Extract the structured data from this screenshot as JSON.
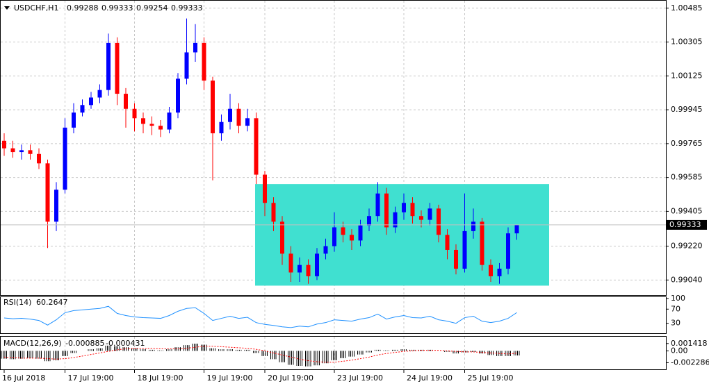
{
  "chart_data": {
    "type": "candlestick",
    "symbol": "USDCHF,H1",
    "up_color": "#0000ff",
    "down_color": "#ff0000",
    "categories": [
      "16 Jul 2018",
      null,
      null,
      null,
      null,
      null,
      null,
      "17 Jul 19:00",
      null,
      null,
      null,
      null,
      null,
      null,
      null,
      "18 Jul 19:00",
      null,
      null,
      null,
      null,
      null,
      null,
      null,
      "19 Jul 19:00",
      null,
      null,
      null,
      null,
      null,
      null,
      "20 Jul 19:00",
      null,
      null,
      null,
      null,
      null,
      null,
      null,
      "23 Jul 19:00",
      null,
      null,
      null,
      null,
      null,
      null,
      null,
      "24 Jul 19:00",
      null,
      null,
      null,
      null,
      null,
      null,
      "25 Jul 19:00",
      null,
      null,
      null,
      null,
      null,
      null
    ],
    "open": [
      0.9978,
      0.9974,
      0.9972,
      0.9973,
      0.9971,
      0.9966,
      0.9935,
      0.9952,
      0.9985,
      0.9993,
      0.9997,
      1.0001,
      1.0005,
      1.003,
      1.0003,
      0.9995,
      0.999,
      0.9987,
      0.9986,
      0.9984,
      0.9993,
      1.0011,
      1.0025,
      1.003,
      1.001,
      0.9982,
      0.9988,
      0.9995,
      0.9986,
      0.999,
      0.996,
      0.9945,
      0.9935,
      0.9918,
      0.9908,
      0.9912,
      0.9906,
      0.9918,
      0.9922,
      0.9932,
      0.9928,
      0.9925,
      0.9933,
      0.9938,
      0.995,
      0.9932,
      0.994,
      0.9945,
      0.9938,
      0.9936,
      0.9942,
      0.9928,
      0.992,
      0.991,
      0.993,
      0.9935,
      0.9912,
      0.9906,
      0.991,
      0.99288
    ],
    "high": [
      0.9982,
      0.9978,
      0.9976,
      0.9976,
      0.9974,
      0.9968,
      0.9956,
      0.999,
      0.9998,
      1.0,
      1.0004,
      1.0008,
      1.0035,
      1.0033,
      1.0006,
      0.9998,
      0.9993,
      0.9991,
      0.9989,
      0.9996,
      1.0014,
      1.0043,
      1.004,
      1.0033,
      1.0012,
      0.9992,
      1.0003,
      0.9998,
      0.9995,
      0.9993,
      0.9962,
      0.9948,
      0.9938,
      0.9922,
      0.9916,
      0.9915,
      0.9921,
      0.9926,
      0.994,
      0.9935,
      0.9931,
      0.9936,
      0.9942,
      0.9956,
      0.9953,
      0.9943,
      0.995,
      0.9948,
      0.9941,
      0.9945,
      0.9944,
      0.9931,
      0.9923,
      0.995,
      0.9942,
      0.9937,
      0.9915,
      0.9913,
      0.9932,
      0.99333
    ],
    "low": [
      0.997,
      0.9969,
      0.9968,
      0.9968,
      0.9963,
      0.9921,
      0.993,
      0.995,
      0.9982,
      0.9991,
      0.9995,
      0.9998,
      1.0002,
      0.9997,
      0.9985,
      0.9983,
      0.9982,
      0.9981,
      0.998,
      0.9982,
      0.999,
      1.0008,
      1.002,
      1.0005,
      0.9957,
      0.9978,
      0.9984,
      0.9982,
      0.9983,
      0.9955,
      0.9938,
      0.993,
      0.9912,
      0.9903,
      0.9903,
      0.9902,
      0.9904,
      0.9915,
      0.9919,
      0.9924,
      0.992,
      0.9922,
      0.993,
      0.9935,
      0.9928,
      0.9929,
      0.9936,
      0.9934,
      0.9932,
      0.9933,
      0.9924,
      0.9915,
      0.9907,
      0.9908,
      0.9926,
      0.9909,
      0.9903,
      0.9902,
      0.9907,
      0.99254
    ],
    "close": [
      0.9974,
      0.9972,
      0.9973,
      0.9971,
      0.9966,
      0.9935,
      0.9952,
      0.9985,
      0.9993,
      0.9997,
      1.0001,
      1.0005,
      1.003,
      1.0003,
      0.9995,
      0.999,
      0.9987,
      0.9986,
      0.9984,
      0.9993,
      1.0011,
      1.0025,
      1.003,
      1.001,
      0.9982,
      0.9988,
      0.9995,
      0.9986,
      0.999,
      0.996,
      0.9945,
      0.9935,
      0.9918,
      0.9908,
      0.9912,
      0.9906,
      0.9918,
      0.9922,
      0.9932,
      0.9928,
      0.9925,
      0.9933,
      0.9938,
      0.995,
      0.9932,
      0.994,
      0.9945,
      0.9938,
      0.9936,
      0.9942,
      0.9928,
      0.992,
      0.991,
      0.993,
      0.9935,
      0.9912,
      0.9906,
      0.991,
      0.99288,
      0.99333
    ],
    "ylim": [
      0.9896,
      1.0051
    ],
    "yticks": [
      1.00485,
      1.00305,
      1.00125,
      0.99945,
      0.99765,
      0.99585,
      0.99405,
      {
        "value": 0.9922,
        "label": "0.99220"
      },
      {
        "value": 0.9904,
        "label": "0.99040"
      }
    ],
    "grid": true,
    "zone": {
      "high": 0.9955,
      "low": 0.9901,
      "color": "#40e0d0"
    },
    "rsi": {
      "name": "RSI(14)",
      "color": "#1e90ff",
      "ylim": [
        0,
        100
      ],
      "yticks": [
        100,
        70,
        30
      ],
      "values": [
        45,
        43,
        44,
        42,
        38,
        25,
        40,
        60,
        66,
        68,
        70,
        72,
        78,
        58,
        52,
        48,
        46,
        45,
        44,
        52,
        64,
        72,
        74,
        58,
        38,
        44,
        50,
        44,
        47,
        32,
        27,
        24,
        20,
        18,
        22,
        20,
        28,
        32,
        40,
        38,
        36,
        42,
        46,
        56,
        42,
        48,
        52,
        46,
        45,
        50,
        40,
        36,
        30,
        46,
        50,
        36,
        32,
        36,
        44,
        60.2647
      ]
    },
    "macd": {
      "name": "MACD(12,26,9)",
      "ylim": [
        -0.0033,
        0.0026
      ],
      "yticks": [
        0.001418,
        {
          "value": 0,
          "label": "0.00"
        },
        -0.002286
      ],
      "hist_color": "#000000",
      "signal_color": "#ff0000",
      "values": [
        -0.0015,
        -0.0016,
        -0.0015,
        -0.0014,
        -0.0015,
        -0.002,
        -0.0018,
        -0.001,
        -0.0004,
        0,
        0.0003,
        0.0005,
        0.001,
        0.0009,
        0.0007,
        0.0005,
        0.0003,
        0.0002,
        0.0001,
        0.0003,
        0.0007,
        0.0011,
        0.0014,
        0.0012,
        0.0005,
        0.0003,
        0.0003,
        0.0002,
        0.0002,
        -0.0004,
        -0.001,
        -0.0016,
        -0.0022,
        -0.0027,
        -0.0029,
        -0.003,
        -0.0028,
        -0.0024,
        -0.0018,
        -0.0014,
        -0.0011,
        -0.0007,
        -0.0003,
        0.0002,
        0.0001,
        0.0002,
        0.0003,
        0.0002,
        0.0002,
        0.0002,
        0,
        -0.0002,
        -0.0005,
        -0.0003,
        -0.0002,
        -0.0005,
        -0.0008,
        -0.001,
        -0.001,
        -0.000885
      ],
      "signal": [
        -0.0012,
        -0.0013,
        -0.0014,
        -0.0014,
        -0.0014,
        -0.0015,
        -0.0016,
        -0.0015,
        -0.0013,
        -0.001,
        -0.0007,
        -0.0004,
        -0.0001,
        0.0002,
        0.0004,
        0.0005,
        0.0005,
        0.0005,
        0.0004,
        0.0004,
        0.0004,
        0.0005,
        0.0007,
        0.0009,
        0.0009,
        0.0008,
        0.0007,
        0.0006,
        0.0005,
        0.0003,
        0,
        -0.0004,
        -0.0008,
        -0.0012,
        -0.0016,
        -0.0019,
        -0.0021,
        -0.0022,
        -0.0022,
        -0.002,
        -0.0018,
        -0.0015,
        -0.0012,
        -0.0008,
        -0.0005,
        -0.0003,
        -0.0001,
        0,
        0.0001,
        0.0001,
        0.0001,
        0,
        -0.0001,
        -0.0002,
        -0.0002,
        -0.0003,
        -0.0004,
        -0.0005,
        -0.0006,
        -0.000431
      ]
    }
  }
}
